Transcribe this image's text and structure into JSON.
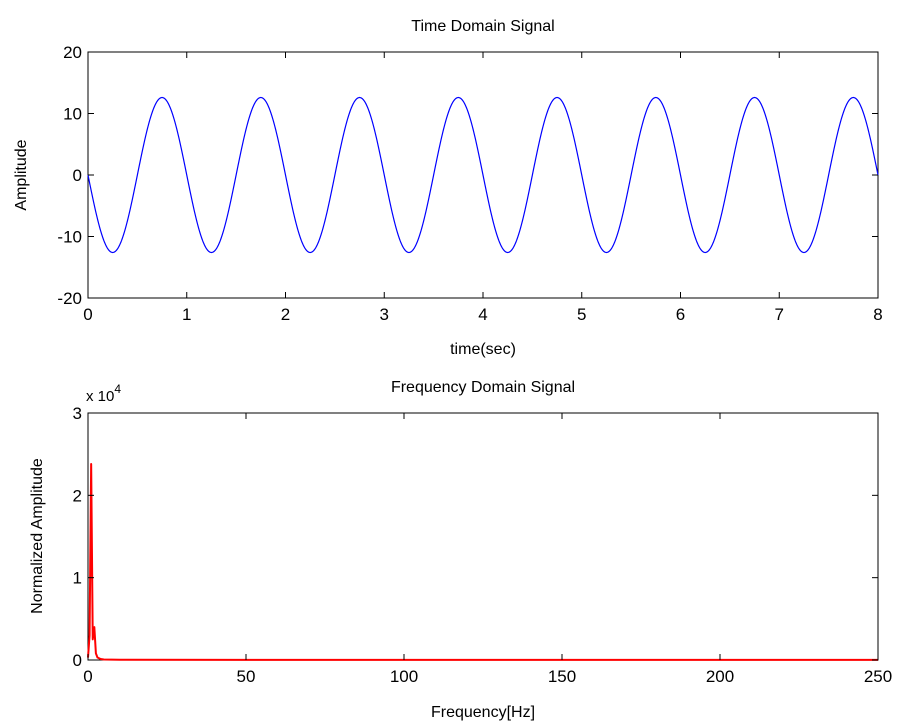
{
  "chart_data": [
    {
      "type": "line",
      "title": "Time Domain Signal",
      "xlabel": "time(sec)",
      "ylabel": "Amplitude",
      "xlim": [
        0,
        8
      ],
      "ylim": [
        -20,
        20
      ],
      "xticks": [
        0,
        1,
        2,
        3,
        4,
        5,
        6,
        7,
        8
      ],
      "yticks": [
        -20,
        -10,
        0,
        10,
        20
      ],
      "xtick_labels": [
        "0",
        "1",
        "2",
        "3",
        "4",
        "5",
        "6",
        "7",
        "8"
      ],
      "ytick_labels": [
        "-20",
        "-10",
        "0",
        "10",
        "20"
      ],
      "grid": false,
      "series": [
        {
          "color": "#0000ff",
          "function": "-A*sin(2*pi*f*t)",
          "amplitude": 12.6,
          "frequency_hz": 1,
          "t_range": [
            0,
            8
          ]
        }
      ]
    },
    {
      "type": "line",
      "title": "Frequency Domain Signal",
      "xlabel": "Frequency[Hz]",
      "ylabel": "Normalized Amplitude",
      "y_exponent_base": "x 10",
      "y_exponent_power": "4",
      "xlim": [
        0,
        250
      ],
      "ylim": [
        0,
        30000
      ],
      "xticks": [
        0,
        50,
        100,
        150,
        200,
        250
      ],
      "yticks": [
        0,
        10000,
        20000,
        30000
      ],
      "xtick_labels": [
        "0",
        "50",
        "100",
        "150",
        "200",
        "250"
      ],
      "ytick_labels": [
        "0",
        "1",
        "2",
        "3"
      ],
      "grid": false,
      "series": [
        {
          "color": "#ff0000",
          "x": [
            0,
            0.5,
            1,
            1.5,
            2,
            2.5,
            3,
            4,
            5,
            10,
            50,
            100,
            150,
            200,
            250
          ],
          "y": [
            300,
            3000,
            23800,
            2500,
            4000,
            800,
            300,
            120,
            60,
            30,
            15,
            12,
            10,
            10,
            10
          ]
        }
      ]
    }
  ]
}
